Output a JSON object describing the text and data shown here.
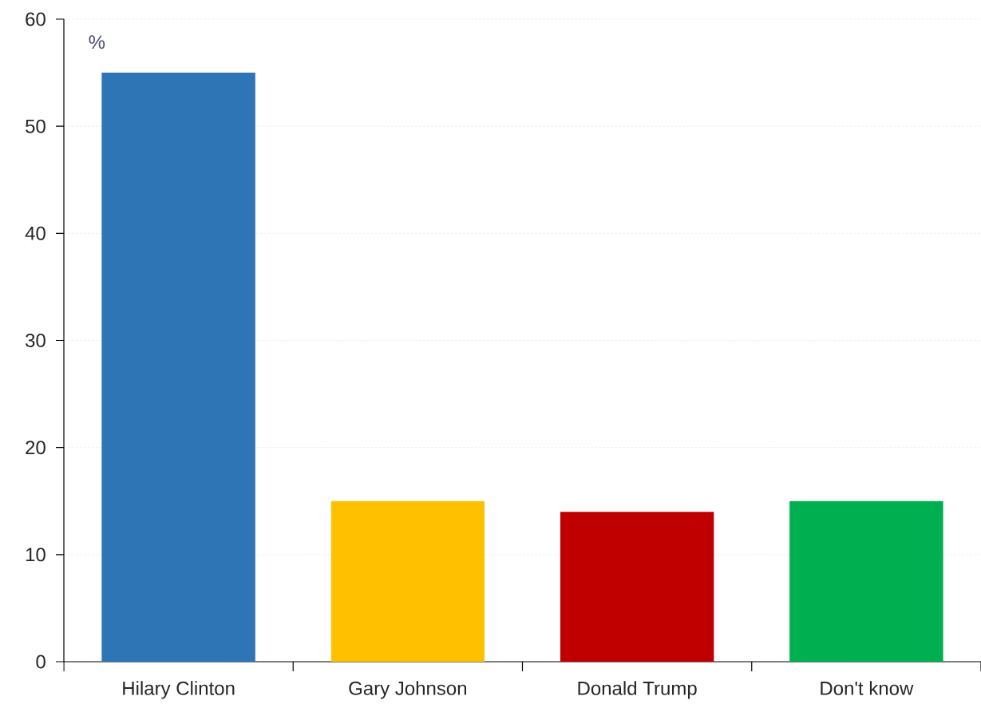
{
  "chart_data": {
    "type": "bar",
    "ylabel": "%",
    "categories": [
      "Hilary Clinton",
      "Gary Johnson",
      "Donald Trump",
      "Don't know"
    ],
    "values": [
      55,
      15,
      14,
      15
    ],
    "colors": [
      "#2e75b6",
      "#ffc000",
      "#c00000",
      "#00b050"
    ],
    "ylim": [
      0,
      60
    ],
    "yticks": [
      0,
      10,
      20,
      30,
      40,
      50,
      60
    ],
    "grid": "y"
  }
}
